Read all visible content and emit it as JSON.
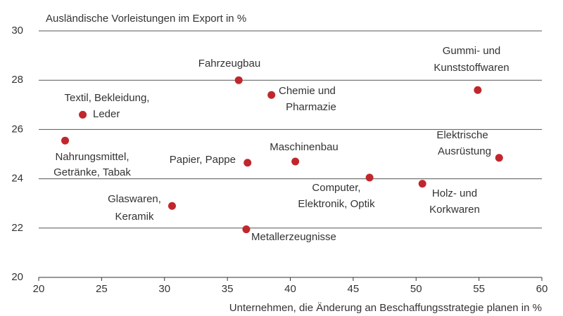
{
  "chart_data": {
    "type": "scatter",
    "ylabel": "Ausländische Vorleistungen im Export in %",
    "xlabel": "Unternehmen, die Änderung an Beschaffungsstrategie planen in %",
    "xlim": [
      20,
      60
    ],
    "xticks": [
      20,
      25,
      30,
      35,
      40,
      45,
      50,
      55,
      60
    ],
    "ylim": [
      20,
      30
    ],
    "yticks": [
      20,
      22,
      24,
      26,
      28,
      30
    ],
    "grid": true,
    "color": "#c0272d",
    "points": [
      {
        "label": [
          "Textil, Bekleidung,",
          "Leder"
        ],
        "x": 23.5,
        "y": 26.6
      },
      {
        "label": [
          "Nahrungsmittel,",
          "Getränke, Tabak"
        ],
        "x": 22.1,
        "y": 25.55
      },
      {
        "label": [
          "Fahrzeugbau"
        ],
        "x": 35.9,
        "y": 28.0
      },
      {
        "label": [
          "Chemie und",
          "Pharmazie"
        ],
        "x": 38.5,
        "y": 27.4
      },
      {
        "label": [
          "Papier, Pappe"
        ],
        "x": 36.6,
        "y": 24.65
      },
      {
        "label": [
          "Maschinenbau"
        ],
        "x": 40.4,
        "y": 24.7
      },
      {
        "label": [
          "Glaswaren,",
          "Keramik"
        ],
        "x": 30.6,
        "y": 22.9
      },
      {
        "label": [
          "Metallerzeugnisse"
        ],
        "x": 36.5,
        "y": 21.95
      },
      {
        "label": [
          "Computer,",
          "Elektronik, Optik"
        ],
        "x": 46.3,
        "y": 24.05
      },
      {
        "label": [
          "Holz- und",
          "Korkwaren"
        ],
        "x": 50.5,
        "y": 23.8
      },
      {
        "label": [
          "Gummi- und",
          "Kunststoffwaren"
        ],
        "x": 54.9,
        "y": 27.6
      },
      {
        "label": [
          "Elektrische",
          "Ausrüstung"
        ],
        "x": 56.6,
        "y": 24.85
      }
    ]
  }
}
